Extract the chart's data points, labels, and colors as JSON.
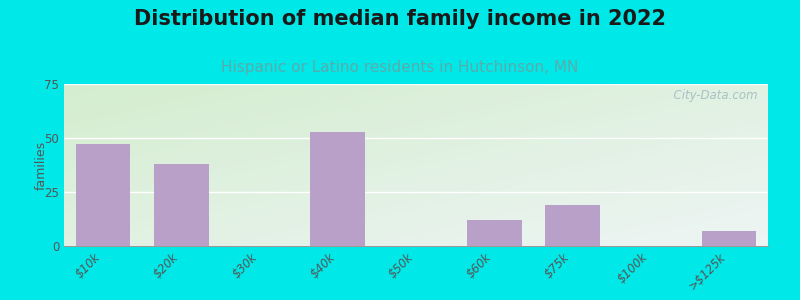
{
  "title": "Distribution of median family income in 2022",
  "subtitle": "Hispanic or Latino residents in Hutchinson, MN",
  "categories": [
    "$10k",
    "$20k",
    "$30k",
    "$40k",
    "$50k",
    "$60k",
    "$75k",
    "$100k",
    ">$125k"
  ],
  "values": [
    47,
    38,
    0,
    53,
    0,
    12,
    19,
    0,
    7
  ],
  "bar_color": "#b8a0c8",
  "ylabel": "families",
  "ylim": [
    0,
    75
  ],
  "yticks": [
    0,
    25,
    50,
    75
  ],
  "background_outer": "#00e8e8",
  "background_inner_top_left": "#d4edcf",
  "background_inner_bottom_right": "#eef5f5",
  "title_fontsize": 15,
  "subtitle_fontsize": 11,
  "subtitle_color": "#5aacac",
  "tick_color": "#555555",
  "watermark": "  City-Data.com",
  "watermark_color": "#a0b8c0"
}
